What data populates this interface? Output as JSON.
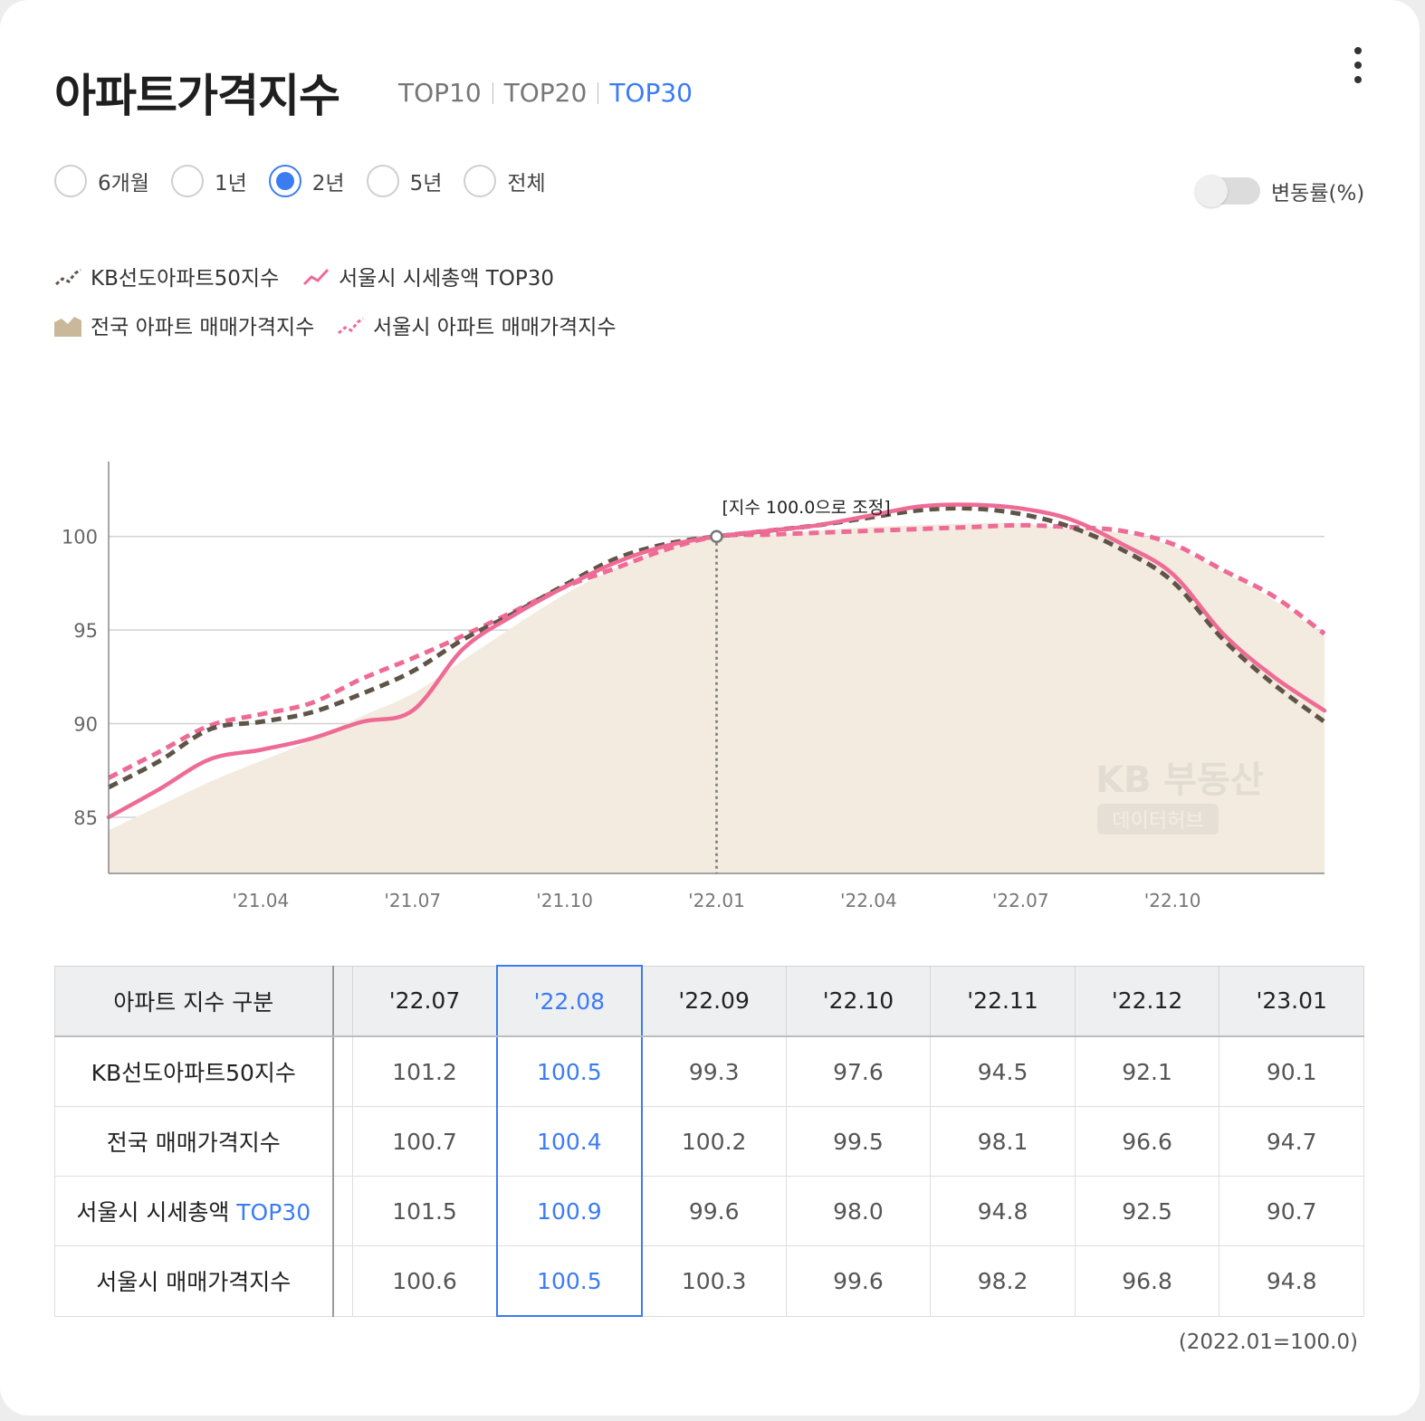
{
  "header": {
    "title": "아파트가격지수",
    "tabs": [
      {
        "label": "TOP10",
        "active": false
      },
      {
        "label": "TOP20",
        "active": false
      },
      {
        "label": "TOP30",
        "active": true
      }
    ]
  },
  "more_icon": "more-vertical-icon",
  "periods": [
    {
      "label": "6개월",
      "checked": false
    },
    {
      "label": "1년",
      "checked": false
    },
    {
      "label": "2년",
      "checked": true
    },
    {
      "label": "5년",
      "checked": false
    },
    {
      "label": "전체",
      "checked": false
    }
  ],
  "toggle": {
    "label": "변동률(%)",
    "on": false
  },
  "legend": [
    {
      "label": "KB선도아파트50지수",
      "style": "dashed",
      "color": "#5e5548"
    },
    {
      "label": "서울시 시세총액 TOP30",
      "style": "solid",
      "color": "#ee6b95"
    },
    {
      "label": "전국 아파트 매매가격지수",
      "style": "area",
      "color": "#c9b89a"
    },
    {
      "label": "서울시 아파트 매매가격지수",
      "style": "dashed",
      "color": "#ee6b95"
    }
  ],
  "watermark": {
    "line1": "KB 부동산",
    "line2": "데이터허브"
  },
  "chart_data": {
    "type": "line",
    "annotation": "[지수 100.0으로 조정]",
    "annotation_x": "22.01",
    "x_ticks": [
      "'21.04",
      "'21.07",
      "'21.10",
      "'22.01",
      "'22.04",
      "'22.07",
      "'22.10"
    ],
    "y_ticks": [
      85,
      90,
      95,
      100
    ],
    "ylim": [
      82,
      104
    ],
    "xlim": [
      "2021-01",
      "2023-01"
    ],
    "grid": true,
    "x": [
      "2021-01",
      "2021-02",
      "2021-03",
      "2021-04",
      "2021-05",
      "2021-06",
      "2021-07",
      "2021-08",
      "2021-09",
      "2021-10",
      "2021-11",
      "2021-12",
      "2022-01",
      "2022-02",
      "2022-03",
      "2022-04",
      "2022-05",
      "2022-06",
      "2022-07",
      "2022-08",
      "2022-09",
      "2022-10",
      "2022-11",
      "2022-12",
      "2023-01"
    ],
    "series": [
      {
        "name": "전국 아파트 매매가격지수",
        "style": "area",
        "color": "#f3ebdf",
        "values": [
          84.3,
          85.6,
          86.9,
          88.0,
          89.1,
          90.4,
          91.6,
          93.4,
          95.2,
          96.9,
          98.3,
          99.4,
          100.0,
          100.1,
          100.3,
          100.5,
          100.6,
          100.7,
          100.7,
          100.4,
          100.2,
          99.5,
          98.1,
          96.6,
          94.7
        ]
      },
      {
        "name": "서울시 아파트 매매가격지수",
        "style": "dashed",
        "color": "#ee6b95",
        "values": [
          87.1,
          88.5,
          89.9,
          90.5,
          91.1,
          92.4,
          93.5,
          94.7,
          96.0,
          97.3,
          98.3,
          99.3,
          100.0,
          100.1,
          100.2,
          100.3,
          100.4,
          100.5,
          100.6,
          100.5,
          100.3,
          99.6,
          98.2,
          96.8,
          94.8
        ]
      },
      {
        "name": "KB선도아파트50지수",
        "style": "dashed",
        "color": "#5e5548",
        "values": [
          86.6,
          88.0,
          89.7,
          90.1,
          90.6,
          91.6,
          92.8,
          94.5,
          95.9,
          97.4,
          98.8,
          99.6,
          100.0,
          100.3,
          100.6,
          101.0,
          101.4,
          101.5,
          101.2,
          100.5,
          99.3,
          97.6,
          94.5,
          92.1,
          90.1
        ]
      },
      {
        "name": "서울시 시세총액 TOP30",
        "style": "solid",
        "color": "#ee6b95",
        "values": [
          85.0,
          86.5,
          88.1,
          88.6,
          89.2,
          90.1,
          90.7,
          94.0,
          95.8,
          97.3,
          98.6,
          99.5,
          100.0,
          100.3,
          100.6,
          101.1,
          101.6,
          101.7,
          101.5,
          100.9,
          99.6,
          98.0,
          94.8,
          92.5,
          90.7
        ]
      }
    ]
  },
  "table": {
    "header_label": "아파트 지수 구분",
    "columns": [
      "'22.07",
      "'22.08",
      "'22.09",
      "'22.10",
      "'22.11",
      "'22.12",
      "'23.01"
    ],
    "highlight_column": 1,
    "rows": [
      {
        "label": "KB선도아파트50지수",
        "label_accent": "",
        "values": [
          "101.2",
          "100.5",
          "99.3",
          "97.6",
          "94.5",
          "92.1",
          "90.1"
        ]
      },
      {
        "label": "전국 매매가격지수",
        "label_accent": "",
        "values": [
          "100.7",
          "100.4",
          "100.2",
          "99.5",
          "98.1",
          "96.6",
          "94.7"
        ]
      },
      {
        "label": "서울시 시세총액 ",
        "label_accent": "TOP30",
        "values": [
          "101.5",
          "100.9",
          "99.6",
          "98.0",
          "94.8",
          "92.5",
          "90.7"
        ]
      },
      {
        "label": "서울시 매매가격지수",
        "label_accent": "",
        "values": [
          "100.6",
          "100.5",
          "100.3",
          "99.6",
          "98.2",
          "96.8",
          "94.8"
        ]
      }
    ]
  },
  "footnote": "(2022.01=100.0)"
}
